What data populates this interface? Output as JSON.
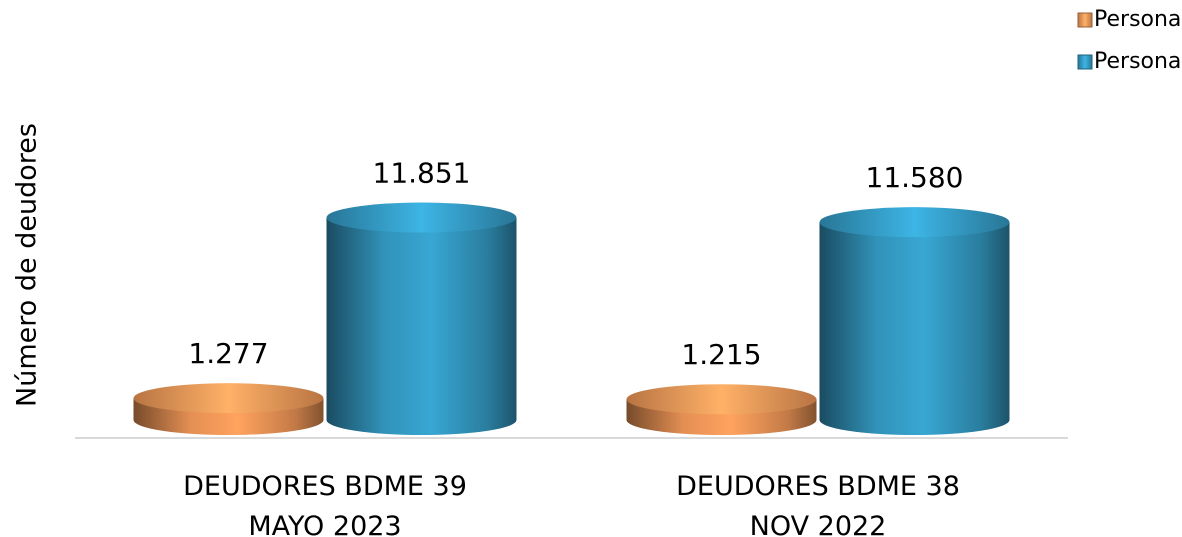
{
  "chart_data": {
    "type": "bar",
    "y_label": "Número de deudores",
    "categories": [
      "DEUDORES BDME 39\nMAYO 2023",
      "DEUDORES BDME 38\nNOV 2022"
    ],
    "series": [
      {
        "name": "Personas Jurídicas",
        "color": "#d9884f",
        "values": [
          1277,
          1215
        ],
        "value_labels": [
          "1.277",
          "1.215"
        ]
      },
      {
        "name": "Personas Naturales",
        "color": "#2f8bb0",
        "values": [
          11851,
          11580
        ],
        "value_labels": [
          "11.851",
          "11.580"
        ]
      }
    ],
    "ylim": [
      0,
      12000
    ],
    "grid": false,
    "legend": "top-right"
  }
}
